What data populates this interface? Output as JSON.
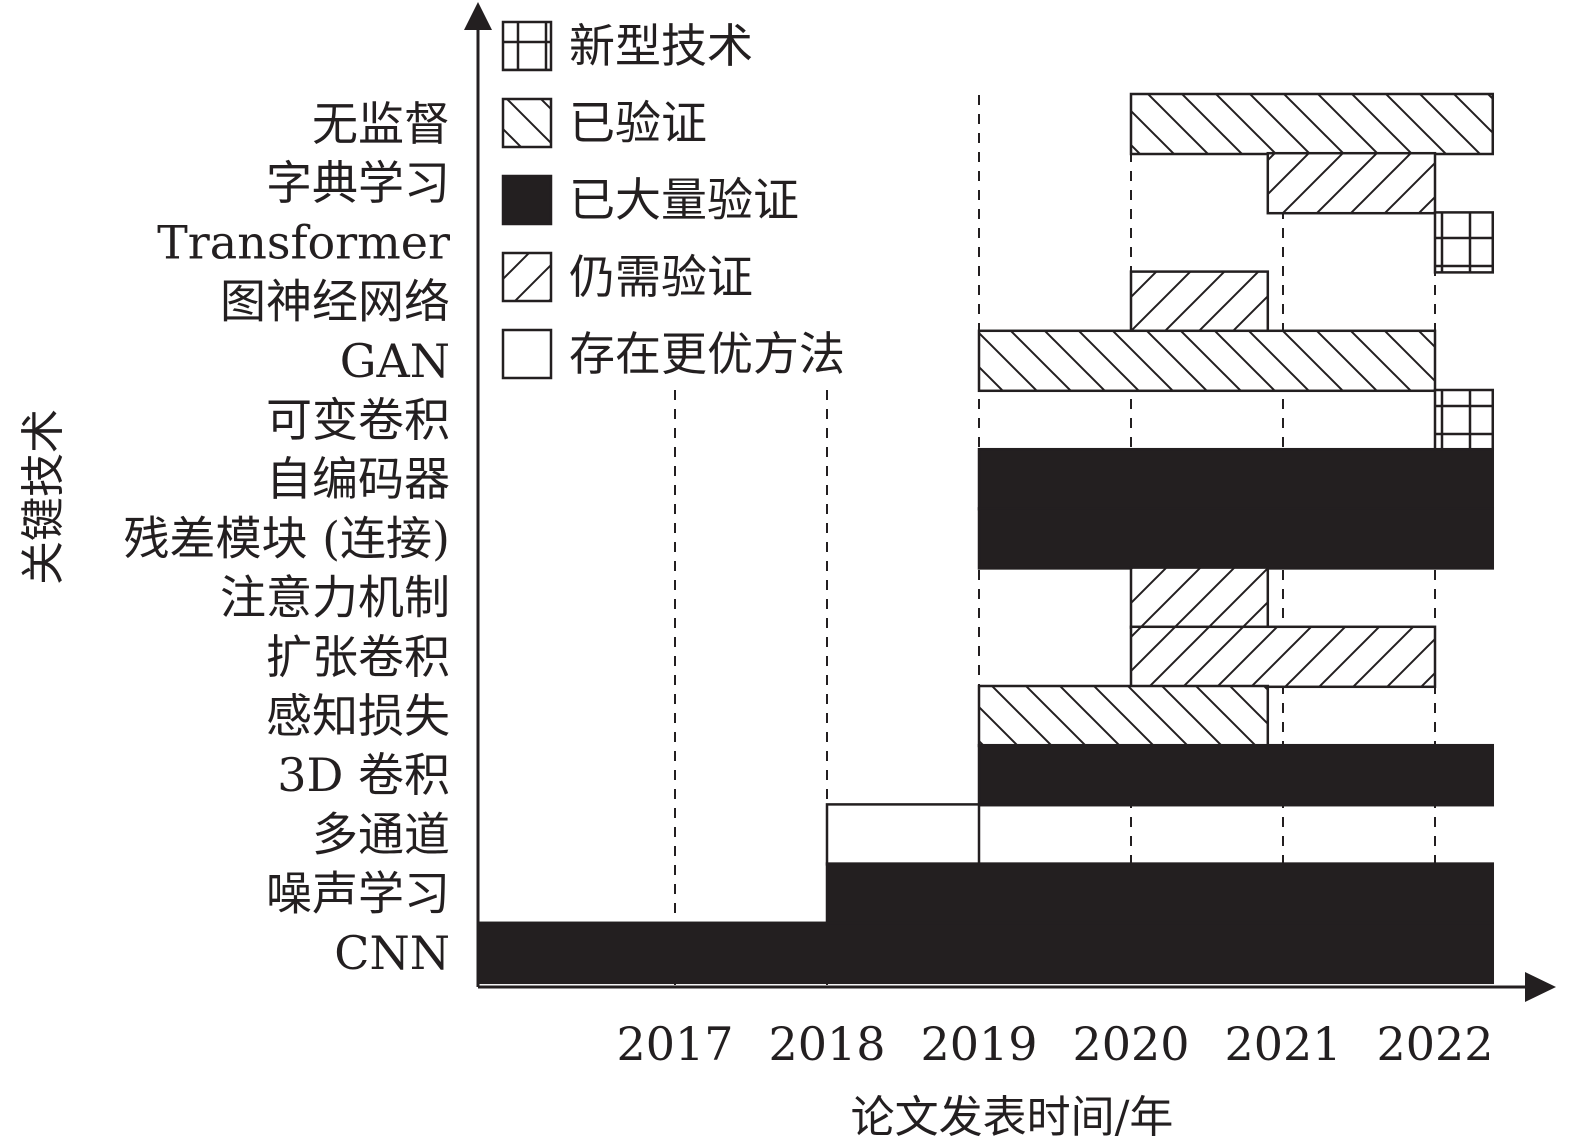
{
  "chart_data": {
    "type": "bar",
    "subtype": "timeline-gantt",
    "xlabel": "论文发表时间/年",
    "ylabel": "关键技术",
    "x_ticks": [
      "2017",
      "2018",
      "2019",
      "2020",
      "2021",
      "2022"
    ],
    "x_range": [
      2015.7,
      2022.4
    ],
    "dashed_gridlines": true,
    "legend": {
      "position": "top-left",
      "items": [
        {
          "status": "new",
          "label": "新型技术",
          "pattern": "grid"
        },
        {
          "status": "verified",
          "label": "已验证",
          "pattern": "backslash"
        },
        {
          "status": "widely_verified",
          "label": "已大量验证",
          "pattern": "solid"
        },
        {
          "status": "needs_verification",
          "label": "仍需验证",
          "pattern": "slash"
        },
        {
          "status": "superseded",
          "label": "存在更优方法",
          "pattern": "empty"
        }
      ]
    },
    "colors": {
      "ink": "#231f20",
      "fill": "#231f20",
      "background": "#ffffff"
    },
    "categories": [
      "无监督",
      "字典学习",
      "Transformer",
      "图神经网络",
      "GAN",
      "可变卷积",
      "自编码器",
      "残差模块 (连接)",
      "注意力机制",
      "扩张卷积",
      "感知损失",
      "3D 卷积",
      "多通道",
      "噪声学习",
      "CNN"
    ],
    "tasks": [
      {
        "name": "无监督",
        "start": 2020.0,
        "end": 2022.38,
        "status": "verified"
      },
      {
        "name": "字典学习",
        "start": 2020.9,
        "end": 2022.0,
        "status": "needs_verification"
      },
      {
        "name": "Transformer",
        "start": 2022.0,
        "end": 2022.38,
        "status": "new"
      },
      {
        "name": "图神经网络",
        "start": 2020.0,
        "end": 2020.9,
        "status": "needs_verification"
      },
      {
        "name": "GAN",
        "start": 2019.0,
        "end": 2022.0,
        "status": "verified"
      },
      {
        "name": "可变卷积",
        "start": 2022.0,
        "end": 2022.38,
        "status": "new"
      },
      {
        "name": "自编码器",
        "start": 2019.0,
        "end": 2022.38,
        "status": "widely_verified"
      },
      {
        "name": "残差模块 (连接)",
        "start": 2019.0,
        "end": 2022.38,
        "status": "widely_verified"
      },
      {
        "name": "注意力机制",
        "start": 2020.0,
        "end": 2020.9,
        "status": "needs_verification"
      },
      {
        "name": "扩张卷积",
        "start": 2020.0,
        "end": 2022.0,
        "status": "needs_verification"
      },
      {
        "name": "感知损失",
        "start": 2019.0,
        "end": 2020.9,
        "status": "verified"
      },
      {
        "name": "3D 卷积",
        "start": 2019.0,
        "end": 2022.38,
        "status": "widely_verified"
      },
      {
        "name": "多通道",
        "start": 2018.0,
        "end": 2019.0,
        "status": "superseded"
      },
      {
        "name": "噪声学习",
        "start": 2018.0,
        "end": 2022.38,
        "status": "widely_verified"
      },
      {
        "name": "CNN",
        "start": 2015.7,
        "end": 2022.38,
        "status": "widely_verified"
      }
    ]
  }
}
